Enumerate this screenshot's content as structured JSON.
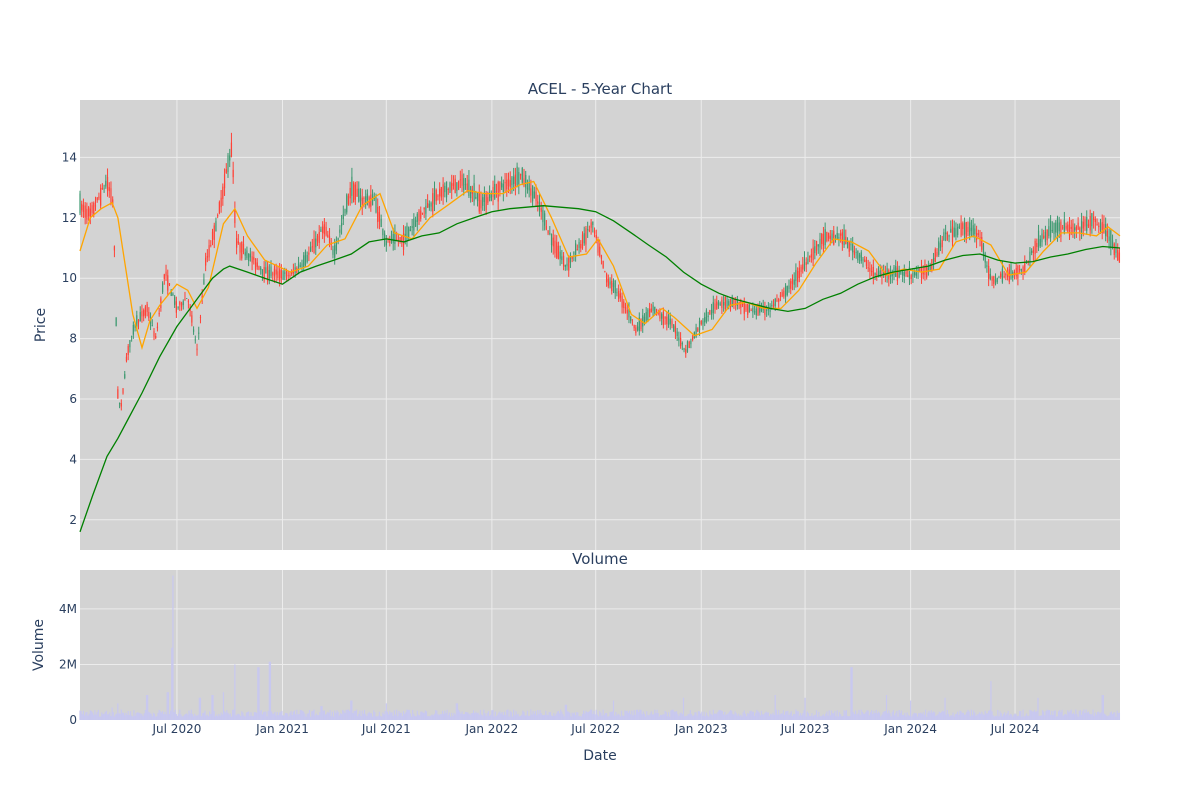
{
  "chart_data": [
    {
      "type": "candlestick",
      "title": "ACEL - 5-Year Chart",
      "xlabel": "",
      "ylabel": "Price",
      "x_range": [
        "2020-01-14",
        "2024-12-31"
      ],
      "ylim": [
        1,
        15.9
      ],
      "y_ticks": [
        2,
        4,
        6,
        8,
        10,
        12,
        14
      ],
      "grid": true,
      "legend": "none",
      "colors": {
        "increasing": "#3d9970",
        "decreasing": "#ff4136",
        "ma_short": "#ffa500",
        "ma_long": "#008000",
        "background": "#d3d3d3",
        "grid": "#ececec"
      },
      "price_path": [
        [
          "2020-01-14",
          12.4
        ],
        [
          "2020-02-01",
          12.1
        ],
        [
          "2020-03-01",
          13.2
        ],
        [
          "2020-03-12",
          12.5
        ],
        [
          "2020-03-20",
          6.2
        ],
        [
          "2020-03-25",
          5.6
        ],
        [
          "2020-04-05",
          7.5
        ],
        [
          "2020-04-20",
          8.5
        ],
        [
          "2020-05-10",
          9.0
        ],
        [
          "2020-05-25",
          8.0
        ],
        [
          "2020-06-10",
          10.2
        ],
        [
          "2020-07-01",
          9.0
        ],
        [
          "2020-07-20",
          9.4
        ],
        [
          "2020-08-05",
          7.6
        ],
        [
          "2020-08-20",
          10.5
        ],
        [
          "2020-09-10",
          12.0
        ],
        [
          "2020-09-25",
          13.5
        ],
        [
          "2020-10-05",
          14.4
        ],
        [
          "2020-10-12",
          11.2
        ],
        [
          "2020-11-01",
          10.8
        ],
        [
          "2020-12-01",
          10.2
        ],
        [
          "2021-01-15",
          10.1
        ],
        [
          "2021-02-10",
          10.6
        ],
        [
          "2021-03-15",
          11.7
        ],
        [
          "2021-04-01",
          10.8
        ],
        [
          "2021-05-01",
          13.0
        ],
        [
          "2021-05-20",
          12.6
        ],
        [
          "2021-06-10",
          12.6
        ],
        [
          "2021-07-01",
          11.2
        ],
        [
          "2021-08-01",
          11.3
        ],
        [
          "2021-09-01",
          12.2
        ],
        [
          "2021-10-01",
          12.8
        ],
        [
          "2021-11-10",
          13.2
        ],
        [
          "2021-12-15",
          12.5
        ],
        [
          "2022-01-15",
          13.0
        ],
        [
          "2022-02-20",
          13.4
        ],
        [
          "2022-03-20",
          12.6
        ],
        [
          "2022-04-15",
          11.3
        ],
        [
          "2022-05-10",
          10.4
        ],
        [
          "2022-06-01",
          11.0
        ],
        [
          "2022-06-25",
          11.8
        ],
        [
          "2022-07-20",
          10.0
        ],
        [
          "2022-08-10",
          9.5
        ],
        [
          "2022-09-10",
          8.3
        ],
        [
          "2022-10-10",
          9.0
        ],
        [
          "2022-11-10",
          8.5
        ],
        [
          "2022-12-05",
          7.6
        ],
        [
          "2023-01-01",
          8.5
        ],
        [
          "2023-02-01",
          9.2
        ],
        [
          "2023-03-01",
          9.2
        ],
        [
          "2023-04-01",
          8.9
        ],
        [
          "2023-05-01",
          9.0
        ],
        [
          "2023-06-01",
          9.6
        ],
        [
          "2023-07-01",
          10.5
        ],
        [
          "2023-08-01",
          11.3
        ],
        [
          "2023-09-01",
          11.4
        ],
        [
          "2023-10-01",
          10.8
        ],
        [
          "2023-11-01",
          10.1
        ],
        [
          "2023-12-01",
          10.2
        ],
        [
          "2024-01-01",
          10.1
        ],
        [
          "2024-02-01",
          10.3
        ],
        [
          "2024-03-01",
          11.4
        ],
        [
          "2024-04-01",
          11.7
        ],
        [
          "2024-05-01",
          11.4
        ],
        [
          "2024-05-20",
          9.9
        ],
        [
          "2024-06-15",
          10.1
        ],
        [
          "2024-07-15",
          10.3
        ],
        [
          "2024-08-10",
          11.2
        ],
        [
          "2024-09-10",
          11.7
        ],
        [
          "2024-10-15",
          11.6
        ],
        [
          "2024-11-15",
          11.9
        ],
        [
          "2024-12-05",
          11.6
        ],
        [
          "2024-12-31",
          10.6
        ]
      ],
      "ma_short": [
        [
          "2020-01-14",
          10.9
        ],
        [
          "2020-02-01",
          12.0
        ],
        [
          "2020-02-20",
          12.3
        ],
        [
          "2020-03-10",
          12.5
        ],
        [
          "2020-03-20",
          12.0
        ],
        [
          "2020-04-15",
          8.8
        ],
        [
          "2020-05-01",
          7.7
        ],
        [
          "2020-05-15",
          8.6
        ],
        [
          "2020-06-01",
          9.1
        ],
        [
          "2020-07-01",
          9.8
        ],
        [
          "2020-07-20",
          9.6
        ],
        [
          "2020-08-05",
          9.0
        ],
        [
          "2020-08-25",
          9.7
        ],
        [
          "2020-09-20",
          11.8
        ],
        [
          "2020-10-10",
          12.3
        ],
        [
          "2020-11-01",
          11.4
        ],
        [
          "2020-12-01",
          10.6
        ],
        [
          "2021-01-15",
          10.2
        ],
        [
          "2021-02-15",
          10.4
        ],
        [
          "2021-03-20",
          11.1
        ],
        [
          "2021-04-20",
          11.3
        ],
        [
          "2021-05-20",
          12.4
        ],
        [
          "2021-06-20",
          12.8
        ],
        [
          "2021-07-15",
          11.5
        ],
        [
          "2021-08-15",
          11.3
        ],
        [
          "2021-09-15",
          12.0
        ],
        [
          "2021-10-15",
          12.4
        ],
        [
          "2021-11-20",
          12.9
        ],
        [
          "2021-12-20",
          12.8
        ],
        [
          "2022-01-20",
          12.8
        ],
        [
          "2022-02-20",
          13.1
        ],
        [
          "2022-03-15",
          13.2
        ],
        [
          "2022-04-15",
          12.0
        ],
        [
          "2022-05-15",
          10.7
        ],
        [
          "2022-06-15",
          10.8
        ],
        [
          "2022-07-05",
          11.3
        ],
        [
          "2022-08-01",
          10.4
        ],
        [
          "2022-09-01",
          8.8
        ],
        [
          "2022-09-25",
          8.5
        ],
        [
          "2022-10-25",
          9.0
        ],
        [
          "2022-11-15",
          8.7
        ],
        [
          "2022-12-20",
          8.1
        ],
        [
          "2023-01-20",
          8.3
        ],
        [
          "2023-02-20",
          9.1
        ],
        [
          "2023-03-20",
          9.2
        ],
        [
          "2023-04-20",
          9.0
        ],
        [
          "2023-05-20",
          9.0
        ],
        [
          "2023-06-20",
          9.6
        ],
        [
          "2023-07-20",
          10.5
        ],
        [
          "2023-08-20",
          11.3
        ],
        [
          "2023-09-20",
          11.2
        ],
        [
          "2023-10-20",
          10.9
        ],
        [
          "2023-11-20",
          10.1
        ],
        [
          "2023-12-20",
          10.3
        ],
        [
          "2024-01-20",
          10.2
        ],
        [
          "2024-02-20",
          10.3
        ],
        [
          "2024-03-20",
          11.2
        ],
        [
          "2024-04-20",
          11.4
        ],
        [
          "2024-05-20",
          11.1
        ],
        [
          "2024-06-20",
          10.1
        ],
        [
          "2024-07-20",
          10.2
        ],
        [
          "2024-08-20",
          10.9
        ],
        [
          "2024-09-20",
          11.5
        ],
        [
          "2024-10-20",
          11.5
        ],
        [
          "2024-11-20",
          11.4
        ],
        [
          "2024-12-10",
          11.7
        ],
        [
          "2024-12-31",
          11.4
        ]
      ],
      "ma_long": [
        [
          "2020-01-14",
          1.6
        ],
        [
          "2020-02-05",
          2.8
        ],
        [
          "2020-03-01",
          4.1
        ],
        [
          "2020-03-20",
          4.7
        ],
        [
          "2020-05-01",
          6.2
        ],
        [
          "2020-06-01",
          7.4
        ],
        [
          "2020-07-01",
          8.4
        ],
        [
          "2020-08-01",
          9.2
        ],
        [
          "2020-09-01",
          10.0
        ],
        [
          "2020-09-20",
          10.3
        ],
        [
          "2020-10-01",
          10.4
        ],
        [
          "2020-11-01",
          10.2
        ],
        [
          "2020-12-01",
          10.0
        ],
        [
          "2021-01-01",
          9.8
        ],
        [
          "2021-02-01",
          10.2
        ],
        [
          "2021-03-01",
          10.4
        ],
        [
          "2021-04-01",
          10.6
        ],
        [
          "2021-05-01",
          10.8
        ],
        [
          "2021-06-01",
          11.2
        ],
        [
          "2021-07-01",
          11.3
        ],
        [
          "2021-08-01",
          11.2
        ],
        [
          "2021-09-01",
          11.4
        ],
        [
          "2021-10-01",
          11.5
        ],
        [
          "2021-11-01",
          11.8
        ],
        [
          "2021-12-01",
          12.0
        ],
        [
          "2022-01-01",
          12.2
        ],
        [
          "2022-02-01",
          12.3
        ],
        [
          "2022-04-01",
          12.4
        ],
        [
          "2022-05-01",
          12.35
        ],
        [
          "2022-06-01",
          12.3
        ],
        [
          "2022-07-01",
          12.2
        ],
        [
          "2022-08-01",
          11.9
        ],
        [
          "2022-09-01",
          11.5
        ],
        [
          "2022-10-01",
          11.1
        ],
        [
          "2022-11-01",
          10.7
        ],
        [
          "2022-12-01",
          10.2
        ],
        [
          "2023-01-01",
          9.8
        ],
        [
          "2023-02-01",
          9.5
        ],
        [
          "2023-03-01",
          9.3
        ],
        [
          "2023-04-01",
          9.15
        ],
        [
          "2023-05-01",
          9.0
        ],
        [
          "2023-06-01",
          8.9
        ],
        [
          "2023-07-01",
          9.0
        ],
        [
          "2023-08-01",
          9.3
        ],
        [
          "2023-09-01",
          9.5
        ],
        [
          "2023-10-01",
          9.8
        ],
        [
          "2023-11-01",
          10.05
        ],
        [
          "2023-12-01",
          10.2
        ],
        [
          "2024-01-01",
          10.3
        ],
        [
          "2024-02-01",
          10.4
        ],
        [
          "2024-03-01",
          10.6
        ],
        [
          "2024-04-01",
          10.75
        ],
        [
          "2024-05-01",
          10.8
        ],
        [
          "2024-06-01",
          10.6
        ],
        [
          "2024-07-01",
          10.5
        ],
        [
          "2024-08-01",
          10.55
        ],
        [
          "2024-09-01",
          10.7
        ],
        [
          "2024-10-01",
          10.8
        ],
        [
          "2024-11-01",
          10.95
        ],
        [
          "2024-12-01",
          11.05
        ],
        [
          "2024-12-31",
          11.0
        ]
      ]
    },
    {
      "type": "bar",
      "title": "Volume",
      "xlabel": "Date",
      "ylabel": "Volume",
      "x_range": [
        "2020-01-14",
        "2024-12-31"
      ],
      "ylim": [
        0,
        5400000
      ],
      "y_ticks": [
        0,
        2000000,
        4000000
      ],
      "y_tick_labels": [
        "0",
        "2M",
        "4M"
      ],
      "x_ticks": [
        "2020-07-01",
        "2021-01-01",
        "2021-07-01",
        "2022-01-01",
        "2022-07-01",
        "2023-01-01",
        "2023-07-01",
        "2024-01-01",
        "2024-07-01"
      ],
      "x_tick_labels": [
        "Jul 2020",
        "Jan 2021",
        "Jul 2021",
        "Jan 2022",
        "Jul 2022",
        "Jan 2023",
        "Jul 2023",
        "Jan 2024",
        "Jul 2024"
      ],
      "bar_color": "#c8c8f0",
      "volume_spikes": [
        [
          "2020-03-10",
          450000
        ],
        [
          "2020-03-20",
          600000
        ],
        [
          "2020-05-10",
          900000
        ],
        [
          "2020-06-15",
          1000000
        ],
        [
          "2020-06-22",
          2600000
        ],
        [
          "2020-06-24",
          5200000
        ],
        [
          "2020-08-10",
          800000
        ],
        [
          "2020-09-01",
          900000
        ],
        [
          "2020-09-20",
          1000000
        ],
        [
          "2020-10-10",
          2000000
        ],
        [
          "2020-11-20",
          1900000
        ],
        [
          "2020-12-10",
          2100000
        ],
        [
          "2021-03-10",
          500000
        ],
        [
          "2021-05-01",
          700000
        ],
        [
          "2021-07-01",
          600000
        ],
        [
          "2021-11-01",
          600000
        ],
        [
          "2022-05-10",
          550000
        ],
        [
          "2022-08-01",
          700000
        ],
        [
          "2022-12-01",
          800000
        ],
        [
          "2023-05-10",
          900000
        ],
        [
          "2023-07-01",
          800000
        ],
        [
          "2023-09-20",
          1900000
        ],
        [
          "2023-11-20",
          900000
        ],
        [
          "2024-01-01",
          700000
        ],
        [
          "2024-03-01",
          800000
        ],
        [
          "2024-05-20",
          1400000
        ],
        [
          "2024-08-10",
          800000
        ],
        [
          "2024-12-01",
          900000
        ]
      ]
    }
  ]
}
